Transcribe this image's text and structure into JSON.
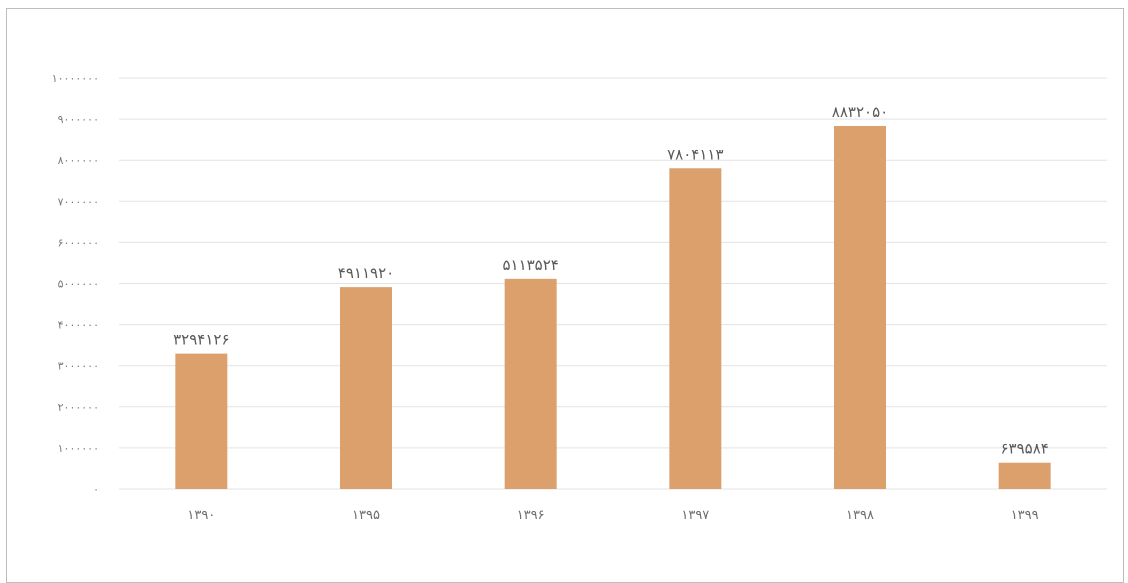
{
  "chart_data": {
    "type": "bar",
    "title": "",
    "xlabel": "",
    "ylabel": "",
    "categories": [
      "۱۳۹۰",
      "۱۳۹۵",
      "۱۳۹۶",
      "۱۳۹۷",
      "۱۳۹۸",
      "۱۳۹۹"
    ],
    "values": [
      3294126,
      4911920,
      5113524,
      7804113,
      8832050,
      639584
    ],
    "data_labels": [
      "۳۲۹۴۱۲۶",
      "۴۹۱۱۹۲۰",
      "۵۱۱۳۵۲۴",
      "۷۸۰۴۱۱۳",
      "۸۸۳۲۰۵۰",
      "۶۳۹۵۸۴"
    ],
    "ylim": [
      0,
      10000000
    ],
    "yticks": [
      0,
      1000000,
      2000000,
      3000000,
      4000000,
      5000000,
      6000000,
      7000000,
      8000000,
      9000000,
      10000000
    ],
    "ytick_labels": [
      "۰",
      "۱۰۰۰۰۰۰",
      "۲۰۰۰۰۰۰",
      "۳۰۰۰۰۰۰",
      "۴۰۰۰۰۰۰",
      "۵۰۰۰۰۰۰",
      "۶۰۰۰۰۰۰",
      "۷۰۰۰۰۰۰",
      "۸۰۰۰۰۰۰",
      "۹۰۰۰۰۰۰",
      "۱۰۰۰۰۰۰۰"
    ],
    "grid": true,
    "legend": "none",
    "bar_color": "#dca06d",
    "grid_color": "#e3e3e3"
  }
}
